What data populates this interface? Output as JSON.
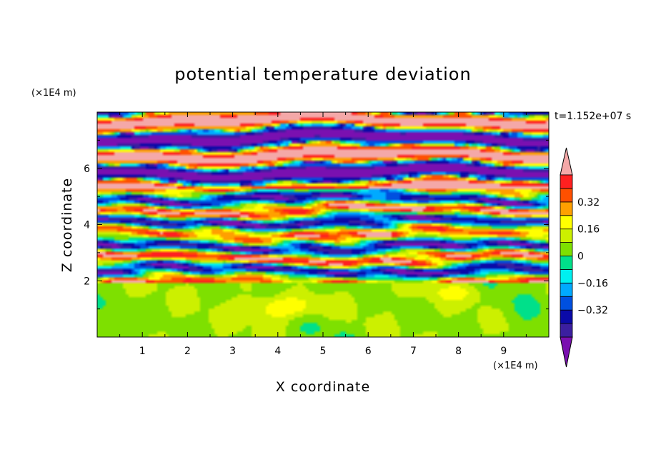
{
  "chart_data": {
    "type": "heatmap",
    "title": "potential temperature deviation",
    "xlabel": "X coordinate",
    "ylabel": "Z coordinate",
    "x_unit": "(×1E4 m)",
    "y_unit": "(×1E4 m)",
    "time_label": "t=1.152e+07 s",
    "xlim": [
      0,
      10
    ],
    "ylim": [
      0,
      8
    ],
    "x_ticks": [
      "1",
      "2",
      "3",
      "4",
      "5",
      "6",
      "7",
      "8",
      "9"
    ],
    "y_ticks": [
      "2",
      "4",
      "6"
    ],
    "grid": false,
    "colorbar": {
      "placement": "right",
      "labels": [
        "0.32",
        "0.16",
        "0",
        "-0.16",
        "-0.32"
      ],
      "levels": [
        -0.48,
        -0.4,
        -0.32,
        -0.24,
        -0.16,
        -0.08,
        0,
        0.08,
        0.16,
        0.24,
        0.32,
        0.4,
        0.48
      ],
      "colors": [
        "#7a10b0",
        "#3b1fa0",
        "#0a0aa8",
        "#0050e0",
        "#00aaff",
        "#00f0f0",
        "#00e08a",
        "#7ee000",
        "#ccf000",
        "#ffff00",
        "#ffa000",
        "#ff5000",
        "#ff2020",
        "#f4a8a8"
      ],
      "extend": "both"
    }
  }
}
